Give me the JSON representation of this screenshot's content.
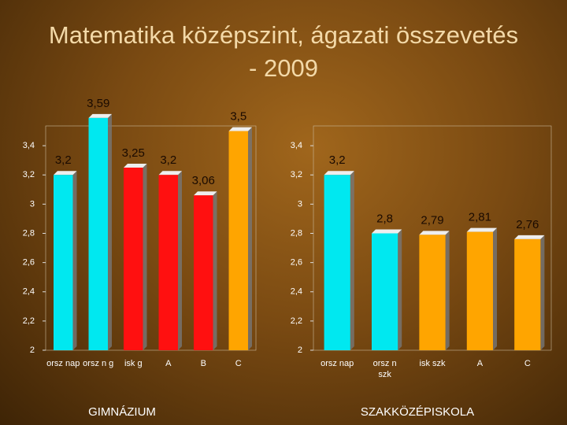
{
  "title": "Matematika középszint, ágazati összevetés - 2009",
  "chart_data": [
    {
      "type": "bar",
      "x_label": "GIMNÁZIUM",
      "categories": [
        "orsz nap",
        "orsz n g",
        "isk g",
        "A",
        "B",
        "C"
      ],
      "values": [
        3.2,
        3.59,
        3.25,
        3.2,
        3.06,
        3.5
      ],
      "value_labels": [
        "3,2",
        "3,59",
        "3,25",
        "3,2",
        "3,06",
        "3,5"
      ],
      "colors": [
        "#00e8f0",
        "#00e8f0",
        "#ff1010",
        "#ff1010",
        "#ff1010",
        "#ffa500"
      ],
      "ylim": [
        2,
        3.6
      ],
      "yticks": [
        2,
        {
          "value": 2.2,
          "label": "2,2"
        },
        {
          "value": 2.4,
          "label": "2,4"
        },
        {
          "value": 2.6,
          "label": "2,6"
        },
        {
          "value": 2.8,
          "label": "2,8"
        },
        3,
        {
          "value": 3.2,
          "label": "3,2"
        },
        {
          "value": 3.4,
          "label": "3,4"
        }
      ]
    },
    {
      "type": "bar",
      "x_label": "SZAKKÖZÉPISKOLA",
      "categories": [
        "orsz nap",
        "orsz n szk",
        "isk szk",
        "A",
        "C"
      ],
      "values": [
        3.2,
        2.8,
        2.79,
        2.81,
        2.76
      ],
      "value_labels": [
        "3,2",
        "2,8",
        "2,79",
        "2,81",
        "2,76"
      ],
      "colors": [
        "#00e8f0",
        "#00e8f0",
        "#ffa500",
        "#ffa500",
        "#ffa500"
      ],
      "ylim": [
        2,
        3.6
      ],
      "yticks": [
        2,
        {
          "value": 2.2,
          "label": "2,2"
        },
        {
          "value": 2.4,
          "label": "2,4"
        },
        {
          "value": 2.6,
          "label": "2,6"
        },
        {
          "value": 2.8,
          "label": "2,8"
        },
        3,
        {
          "value": 3.2,
          "label": "3,2"
        },
        {
          "value": 3.4,
          "label": "3,4"
        }
      ]
    }
  ]
}
